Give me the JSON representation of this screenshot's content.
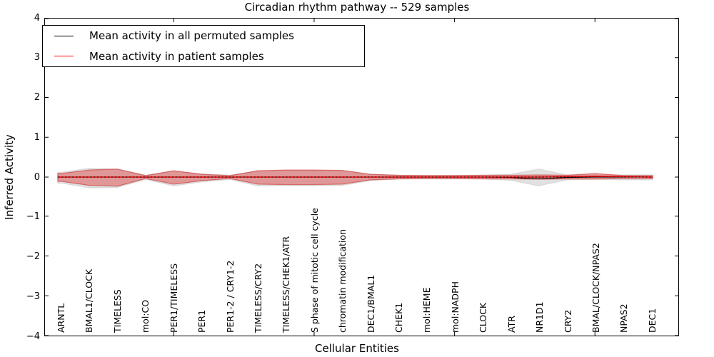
{
  "chart_data": {
    "type": "area",
    "title": "Circadian rhythm pathway -- 529 samples",
    "xlabel": "Cellular Entities",
    "ylabel": "Inferred Activity",
    "ylim": [
      -4,
      4
    ],
    "yticks": [
      4,
      3,
      2,
      1,
      0,
      -1,
      -2,
      -3,
      -4
    ],
    "xtick_positions": [
      5,
      10,
      15,
      20
    ],
    "grid": false,
    "legend_position": "upper left",
    "legend": [
      {
        "label": "Mean activity in all permuted samples",
        "color": "#000000"
      },
      {
        "label": "Mean activity in patient samples",
        "color": "#ff0000"
      }
    ],
    "categories": [
      "ARNTL",
      "BMAL1/CLOCK",
      "TIMELESS",
      "mol:CO",
      "PER1/TIMELESS",
      "PER1",
      "PER1-2 / CRY1-2",
      "TIMELESS/CRY2",
      "TIMELESS/CHEK1/ATR",
      "S phase of mitotic cell cycle",
      "chromatin modification",
      "DEC1/BMAL1",
      "CHEK1",
      "mol:HEME",
      "mol:NADPH",
      "CLOCK",
      "ATR",
      "NR1D1",
      "CRY2",
      "BMAL/CLOCK/NPAS2",
      "NPAS2",
      "DEC1"
    ],
    "series": [
      {
        "name": "permuted-range",
        "kind": "band",
        "fill": "#bdbdbd",
        "fill_opacity": 0.45,
        "edge": "#c9c9c9",
        "edge_opacity": 0.6,
        "upper": [
          0.12,
          0.22,
          0.2,
          0.05,
          0.15,
          0.08,
          0.05,
          0.15,
          0.17,
          0.17,
          0.16,
          0.07,
          0.05,
          0.045,
          0.045,
          0.05,
          0.07,
          0.2,
          0.055,
          0.055,
          0.055,
          0.055
        ],
        "lower": [
          -0.15,
          -0.27,
          -0.26,
          -0.06,
          -0.22,
          -0.12,
          -0.06,
          -0.22,
          -0.22,
          -0.22,
          -0.21,
          -0.09,
          -0.05,
          -0.045,
          -0.045,
          -0.05,
          -0.08,
          -0.22,
          -0.07,
          -0.055,
          -0.07,
          -0.07
        ]
      },
      {
        "name": "patient-range",
        "kind": "band",
        "fill": "#dd3333",
        "fill_opacity": 0.42,
        "edge": "#cc2222",
        "edge_opacity": 0.55,
        "upper": [
          0.09,
          0.18,
          0.2,
          0.035,
          0.16,
          0.07,
          0.035,
          0.16,
          0.18,
          0.18,
          0.17,
          0.07,
          0.045,
          0.04,
          0.04,
          0.045,
          0.045,
          0.055,
          0.045,
          0.09,
          0.04,
          0.035
        ],
        "lower": [
          -0.11,
          -0.21,
          -0.23,
          -0.035,
          -0.18,
          -0.09,
          -0.035,
          -0.18,
          -0.19,
          -0.19,
          -0.18,
          -0.07,
          -0.045,
          -0.04,
          -0.04,
          -0.045,
          -0.045,
          -0.055,
          -0.045,
          -0.05,
          -0.035,
          -0.035
        ]
      },
      {
        "name": "permuted-mean",
        "kind": "line",
        "color": "#000000",
        "values": [
          0,
          0,
          0,
          0,
          0,
          0,
          0,
          0,
          0,
          0,
          0,
          0,
          0,
          0,
          0,
          0,
          -0.01,
          -0.045,
          -0.01,
          0,
          0,
          0
        ]
      },
      {
        "name": "patient-mean",
        "kind": "line",
        "color": "#ff0000",
        "values": [
          0,
          0,
          0,
          0,
          0,
          0,
          0,
          0,
          0,
          0,
          0,
          0,
          0,
          0,
          0,
          0,
          0,
          0,
          0.01,
          0.02,
          0.01,
          0
        ]
      },
      {
        "name": "zero-reference",
        "kind": "dashed-line",
        "color": "#000000",
        "value": 0
      }
    ]
  }
}
